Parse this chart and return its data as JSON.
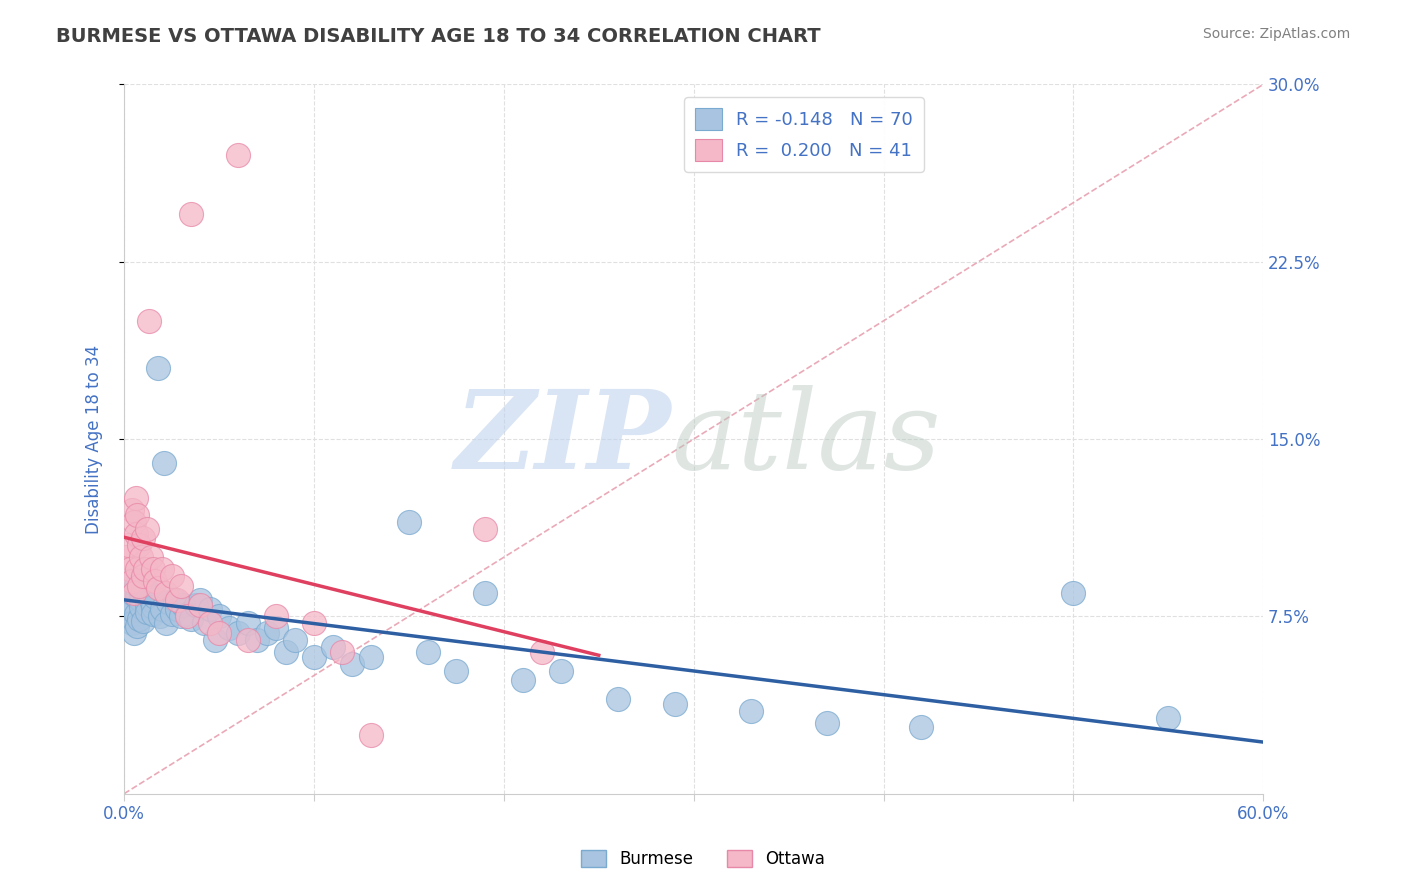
{
  "title": "BURMESE VS OTTAWA DISABILITY AGE 18 TO 34 CORRELATION CHART",
  "source_text": "Source: ZipAtlas.com",
  "ylabel": "Disability Age 18 to 34",
  "xlim": [
    0.0,
    0.6
  ],
  "ylim": [
    0.0,
    0.3
  ],
  "yticks_right": [
    0.075,
    0.15,
    0.225,
    0.3
  ],
  "ytick_labels_right": [
    "7.5%",
    "15.0%",
    "22.5%",
    "30.0%"
  ],
  "burmese_color": "#a8c4e0",
  "burmese_edge_color": "#7aaad0",
  "burmese_line_color": "#2e5fa3",
  "ottawa_color": "#f4b8c8",
  "ottawa_edge_color": "#e888a8",
  "ottawa_line_color": "#e04060",
  "ref_line_color": "#e8a0b0",
  "background_color": "#ffffff",
  "grid_color": "#e0e0e0",
  "title_color": "#404040",
  "axis_label_color": "#4472c4",
  "legend_value_color": "#4472c4",
  "burmese_R": -0.148,
  "burmese_N": 70,
  "ottawa_R": 0.2,
  "ottawa_N": 41,
  "burmese_x": [
    0.001,
    0.002,
    0.003,
    0.003,
    0.004,
    0.004,
    0.005,
    0.005,
    0.006,
    0.006,
    0.007,
    0.007,
    0.008,
    0.008,
    0.009,
    0.009,
    0.01,
    0.01,
    0.011,
    0.012,
    0.012,
    0.013,
    0.014,
    0.015,
    0.015,
    0.016,
    0.018,
    0.019,
    0.02,
    0.021,
    0.022,
    0.023,
    0.025,
    0.027,
    0.028,
    0.03,
    0.031,
    0.033,
    0.035,
    0.038,
    0.04,
    0.042,
    0.045,
    0.048,
    0.05,
    0.055,
    0.06,
    0.065,
    0.07,
    0.075,
    0.08,
    0.085,
    0.09,
    0.1,
    0.11,
    0.12,
    0.13,
    0.15,
    0.16,
    0.175,
    0.19,
    0.21,
    0.23,
    0.26,
    0.29,
    0.33,
    0.37,
    0.42,
    0.5,
    0.55
  ],
  "burmese_y": [
    0.08,
    0.075,
    0.082,
    0.078,
    0.085,
    0.072,
    0.09,
    0.068,
    0.088,
    0.076,
    0.083,
    0.071,
    0.087,
    0.074,
    0.082,
    0.079,
    0.086,
    0.073,
    0.088,
    0.08,
    0.077,
    0.085,
    0.082,
    0.079,
    0.076,
    0.083,
    0.18,
    0.075,
    0.078,
    0.14,
    0.072,
    0.081,
    0.076,
    0.082,
    0.078,
    0.075,
    0.08,
    0.076,
    0.074,
    0.08,
    0.082,
    0.072,
    0.078,
    0.065,
    0.075,
    0.07,
    0.068,
    0.072,
    0.065,
    0.068,
    0.07,
    0.06,
    0.065,
    0.058,
    0.062,
    0.055,
    0.058,
    0.115,
    0.06,
    0.052,
    0.085,
    0.048,
    0.052,
    0.04,
    0.038,
    0.035,
    0.03,
    0.028,
    0.085,
    0.032
  ],
  "ottawa_x": [
    0.001,
    0.002,
    0.003,
    0.004,
    0.004,
    0.005,
    0.005,
    0.006,
    0.006,
    0.007,
    0.007,
    0.008,
    0.008,
    0.009,
    0.01,
    0.01,
    0.011,
    0.012,
    0.013,
    0.014,
    0.015,
    0.016,
    0.018,
    0.02,
    0.022,
    0.025,
    0.028,
    0.03,
    0.033,
    0.035,
    0.04,
    0.045,
    0.05,
    0.06,
    0.065,
    0.08,
    0.1,
    0.115,
    0.13,
    0.19,
    0.22
  ],
  "ottawa_y": [
    0.1,
    0.105,
    0.095,
    0.12,
    0.09,
    0.115,
    0.085,
    0.11,
    0.125,
    0.095,
    0.118,
    0.088,
    0.105,
    0.1,
    0.092,
    0.108,
    0.095,
    0.112,
    0.2,
    0.1,
    0.095,
    0.09,
    0.087,
    0.095,
    0.085,
    0.092,
    0.082,
    0.088,
    0.075,
    0.245,
    0.08,
    0.072,
    0.068,
    0.27,
    0.065,
    0.075,
    0.072,
    0.06,
    0.025,
    0.112,
    0.06
  ]
}
